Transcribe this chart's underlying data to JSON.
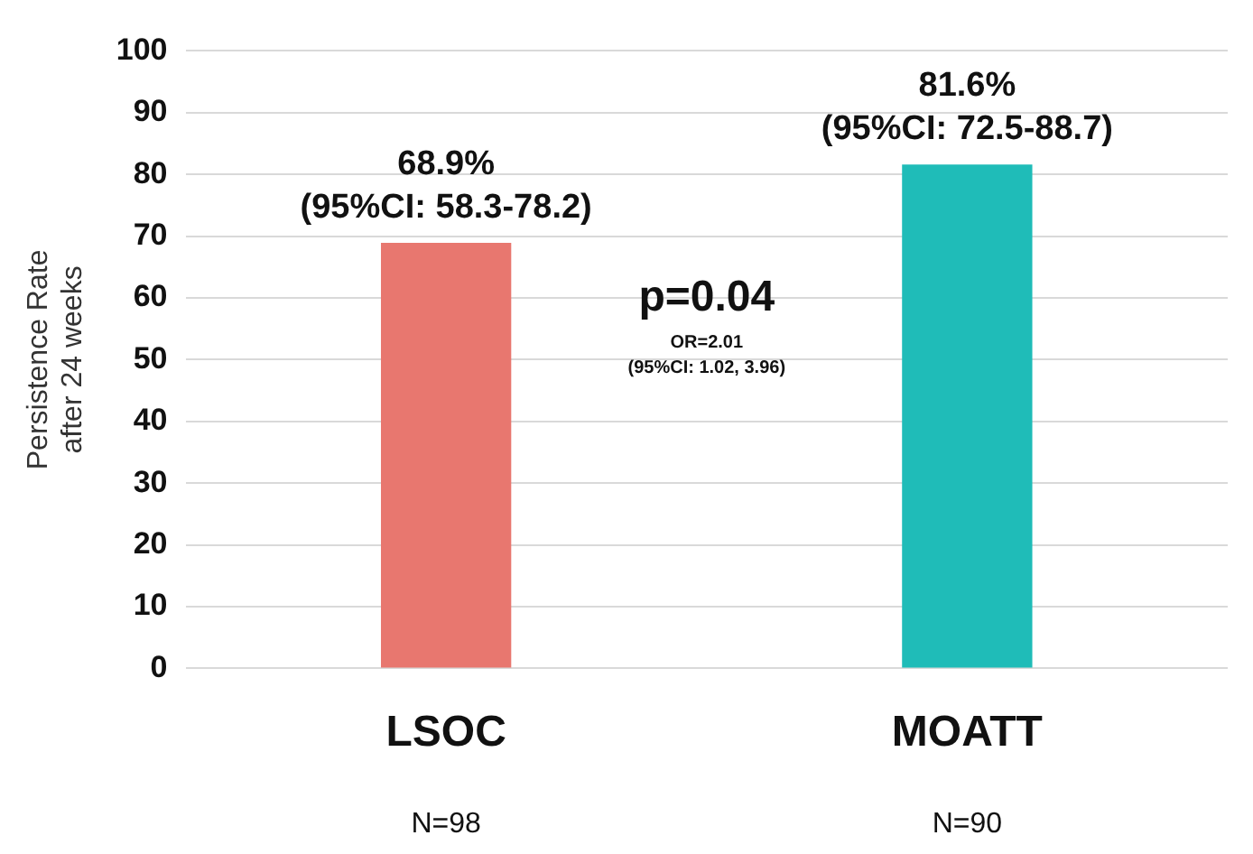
{
  "chart_data": {
    "type": "bar",
    "ylabel": "Persistence Rate\nafter 24 weeks",
    "categories": [
      "LSOC",
      "MOATT"
    ],
    "values": [
      68.9,
      81.6
    ],
    "colors": [
      "#e8776f",
      "#1fbcb8"
    ],
    "value_labels": [
      "68.9%\n(95%CI: 58.3-78.2)",
      "81.6%\n(95%CI: 72.5-88.7)"
    ],
    "ylim": [
      0,
      100
    ],
    "yticks": [
      0,
      10,
      20,
      30,
      40,
      50,
      60,
      70,
      80,
      90,
      100
    ],
    "grid": "y",
    "legend": false,
    "annotations": [
      "p=0.04",
      "OR=2.01",
      "(95%CI: 1.02, 3.96)",
      "N=98",
      "N=90"
    ]
  }
}
